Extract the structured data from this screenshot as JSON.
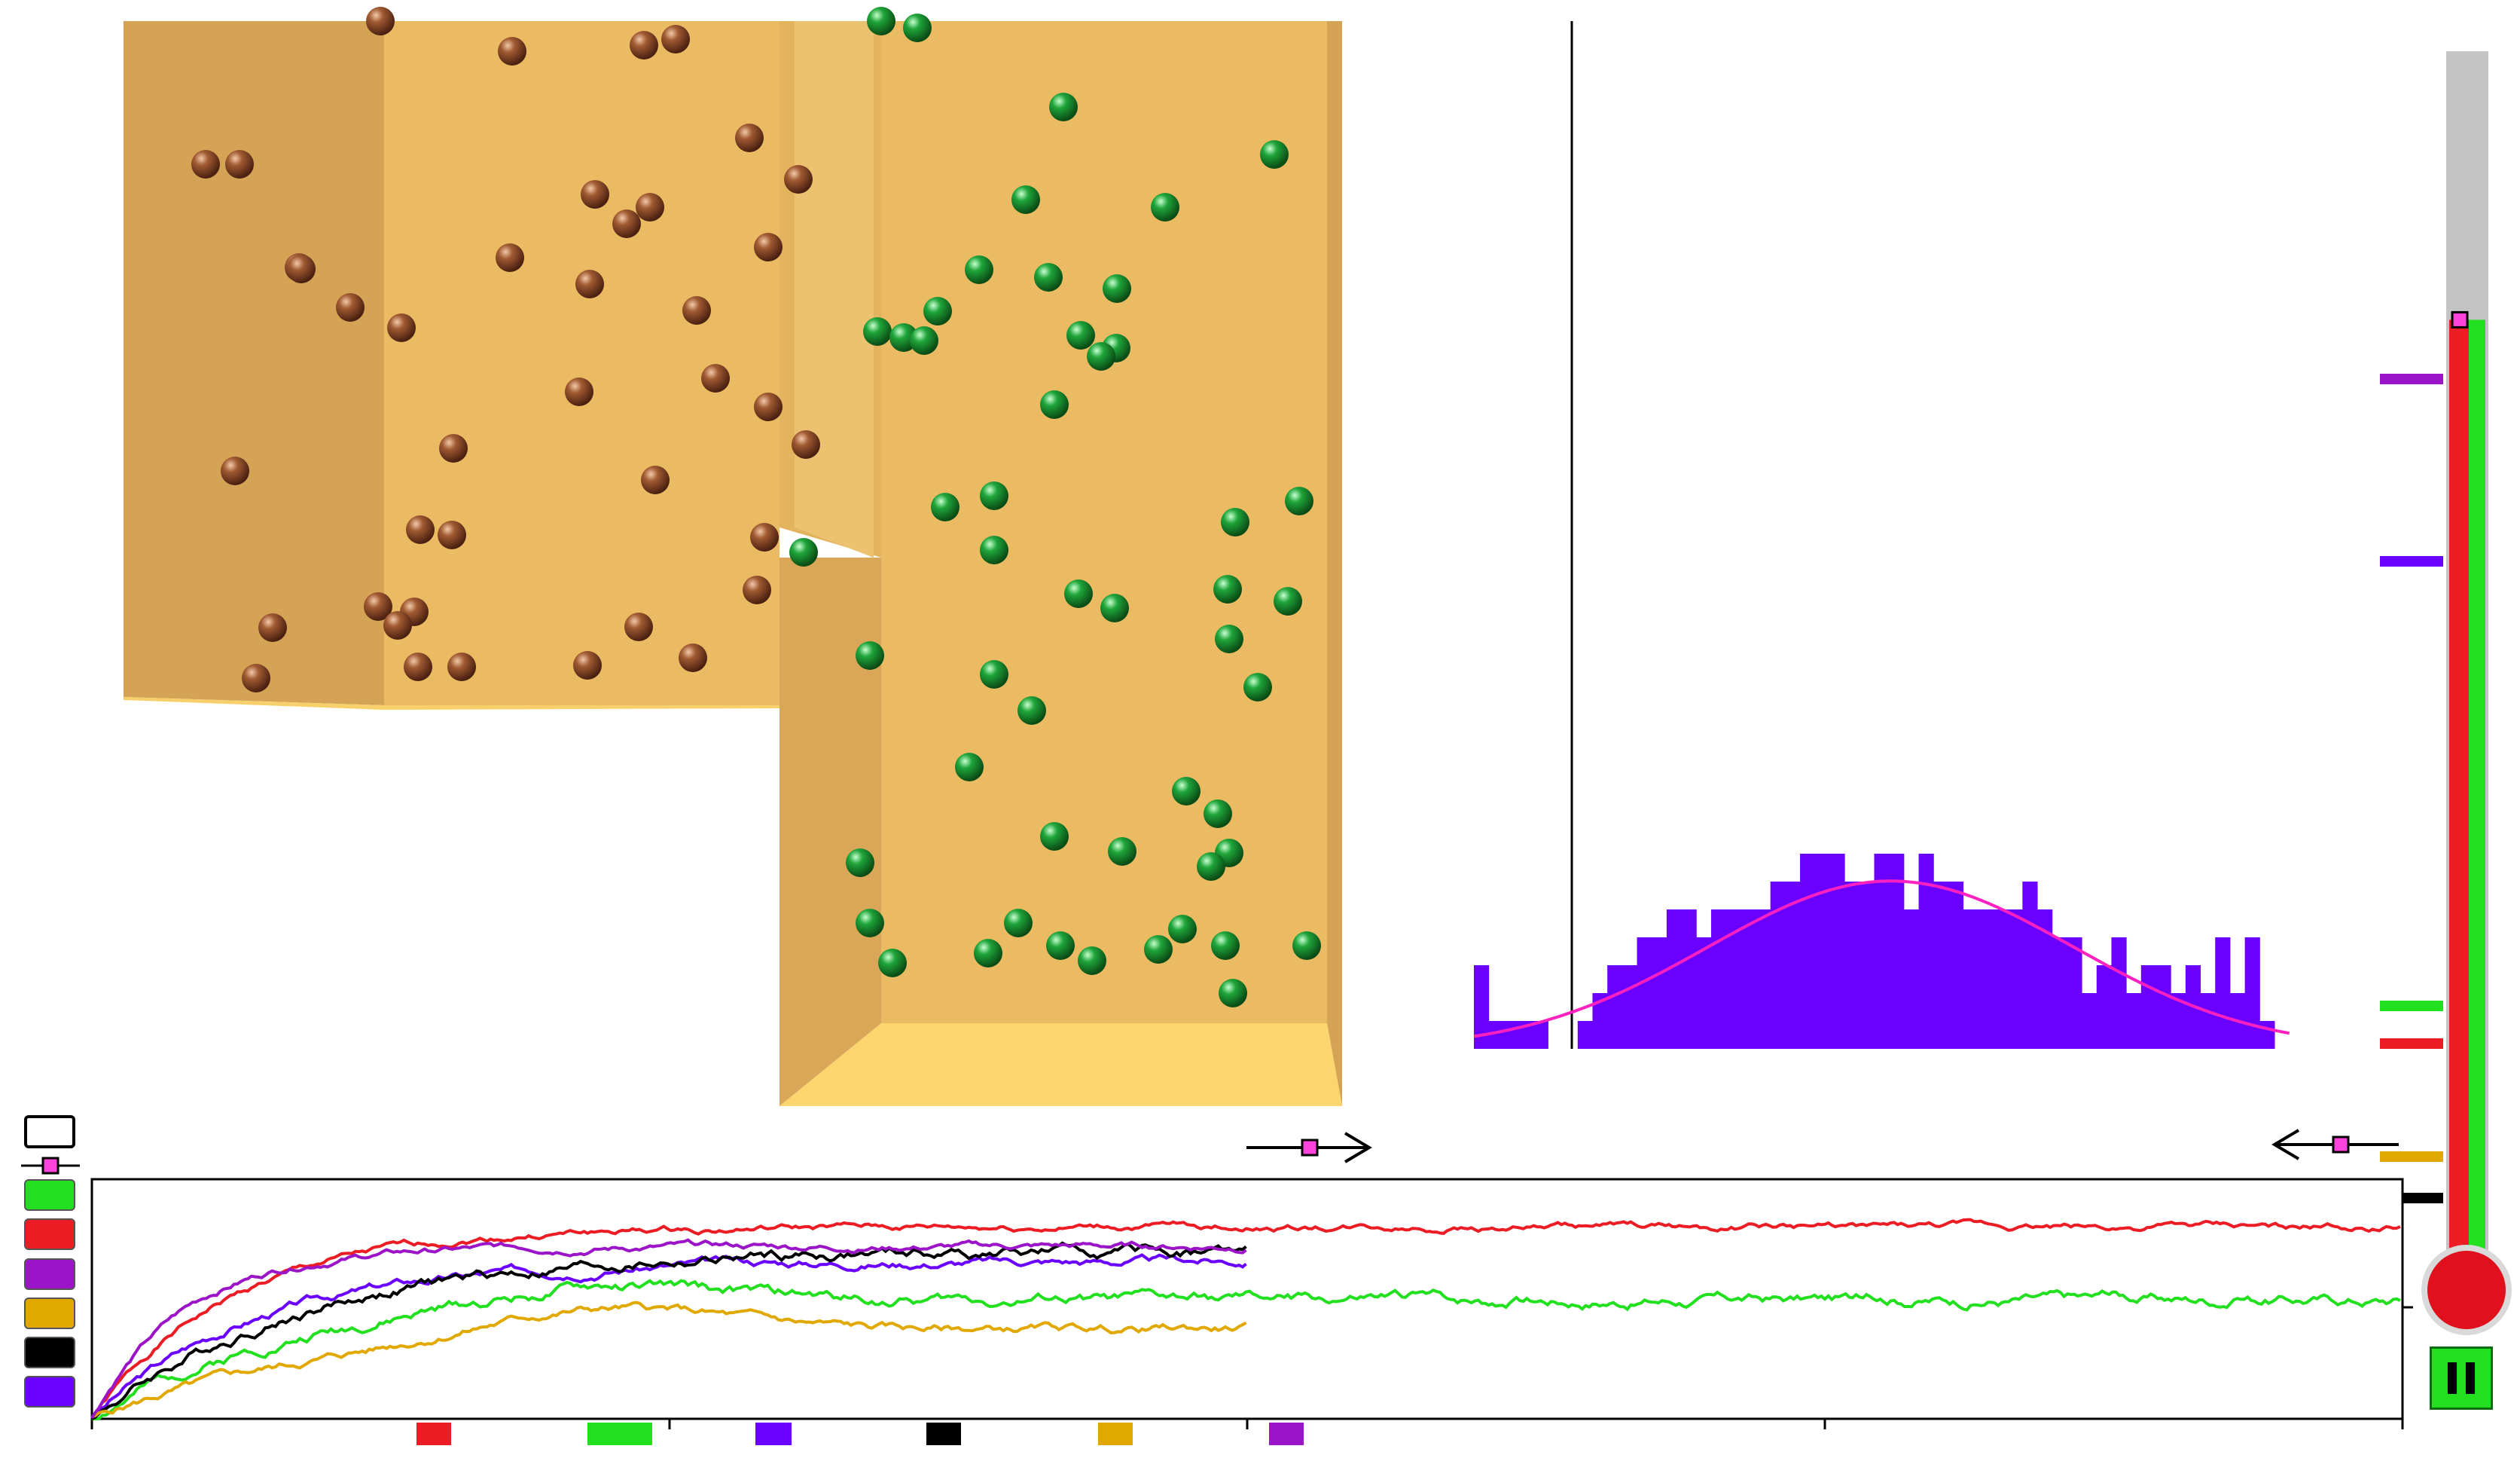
{
  "app": {
    "colors": {
      "brown_particle": "#8a4a28",
      "green_particle": "#1f8f2f",
      "box_wall": "#e9b861",
      "box_wall_dark": "#d4a455",
      "box_floor": "#fdd56e",
      "histogram": "#6a00ff",
      "fit_curve": "#ff20c0",
      "thermo_gray": "#c4c4c4",
      "thermo_red": "#ec1c24",
      "thermo_green": "#22e01f",
      "marker_pink": "#ff44dd"
    },
    "series_selector": {
      "buttons": [
        {
          "name": "green",
          "color": "#22e01f"
        },
        {
          "name": "red",
          "color": "#ec1c24"
        },
        {
          "name": "purple",
          "color": "#9b14c8"
        },
        {
          "name": "gold",
          "color": "#e0a800"
        },
        {
          "name": "black",
          "color": "#000000"
        },
        {
          "name": "blue",
          "color": "#6a00ff"
        }
      ]
    },
    "legend_chips": [
      "#ec1c24",
      "#22e01f",
      "#6a00ff",
      "#000000",
      "#e0a800",
      "#9b14c8"
    ],
    "thermometer": {
      "level_fraction": 0.78,
      "tick_colors": [
        "#9b14c8",
        "#6a00ff",
        "#22e01f",
        "#ec1c24",
        "#e0a800",
        "#000000"
      ]
    },
    "pause_button": {
      "icon": "pause-icon"
    }
  },
  "chart_data": [
    {
      "type": "bar",
      "title": "",
      "xlabel": "",
      "ylabel": "",
      "values": [
        3,
        1,
        1,
        1,
        1,
        0,
        0,
        1,
        2,
        3,
        3,
        4,
        4,
        5,
        5,
        4,
        5,
        5,
        5,
        5,
        6,
        6,
        7,
        7,
        7,
        6,
        6,
        7,
        7,
        5,
        7,
        6,
        6,
        5,
        5,
        5,
        5,
        6,
        5,
        4,
        4,
        2,
        3,
        4,
        2,
        3,
        3,
        2,
        3,
        2,
        4,
        2,
        4,
        1
      ],
      "fit_curve": true
    },
    {
      "type": "line",
      "title": "",
      "xlabel": "",
      "ylabel": "",
      "xlim": [
        0,
        100
      ],
      "ylim": [
        0,
        1
      ],
      "x_ticks": [
        0,
        25,
        50,
        75,
        100
      ],
      "series": [
        {
          "color": "#ec1c24",
          "final": 0.8,
          "rise": 6,
          "noise": 0.012,
          "length": 100,
          "seed": 1
        },
        {
          "color": "#22e01f",
          "final": 0.5,
          "rise": 8,
          "noise": 0.02,
          "length": 100,
          "seed": 2,
          "hump": 0.08
        },
        {
          "color": "#6a00ff",
          "final": 0.66,
          "rise": 7,
          "noise": 0.015,
          "length": 50,
          "seed": 3
        },
        {
          "color": "#000000",
          "final": 0.7,
          "rise": 9,
          "noise": 0.02,
          "length": 50,
          "seed": 4
        },
        {
          "color": "#e0a800",
          "final": 0.38,
          "rise": 10,
          "noise": 0.015,
          "length": 50,
          "seed": 5,
          "hump": 0.12
        },
        {
          "color": "#9b14c8",
          "final": 0.72,
          "rise": 4,
          "noise": 0.012,
          "length": 50,
          "seed": 6
        }
      ]
    }
  ]
}
